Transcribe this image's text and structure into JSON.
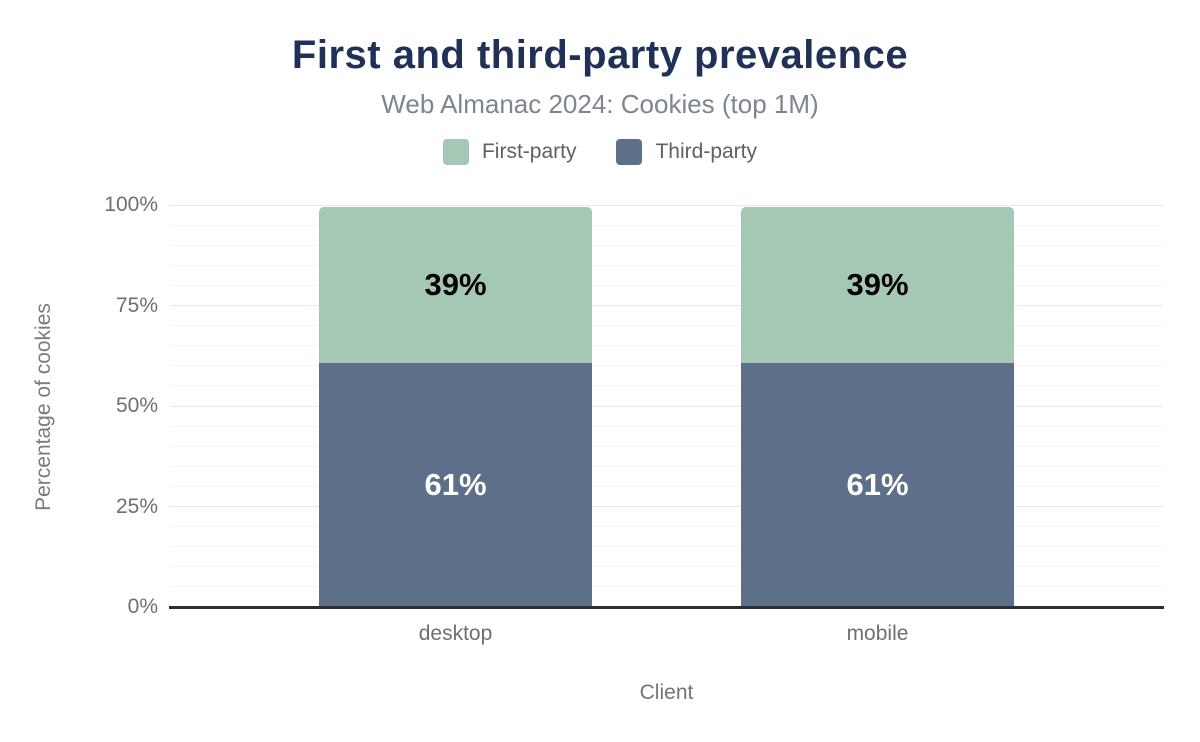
{
  "chart_data": {
    "type": "bar",
    "stacked": true,
    "title": "First and third-party prevalence",
    "subtitle": "Web Almanac 2024: Cookies (top 1M)",
    "xlabel": "Client",
    "ylabel": "Percentage of cookies",
    "categories": [
      "desktop",
      "mobile"
    ],
    "series": [
      {
        "name": "Third-party",
        "values": [
          61,
          61
        ],
        "data_labels": [
          "61%",
          "61%"
        ],
        "color": "#5e7089",
        "label_color": "#ffffff"
      },
      {
        "name": "First-party",
        "values": [
          39,
          39
        ],
        "data_labels": [
          "39%",
          "39%"
        ],
        "color": "#a5c8b4",
        "label_color": "#000000"
      }
    ],
    "stack_order_bottom_to_top": [
      "Third-party",
      "First-party"
    ],
    "legend_order": [
      "First-party",
      "Third-party"
    ],
    "legend_position": "top",
    "y_ticks": [
      {
        "value": 0,
        "label": "0%"
      },
      {
        "value": 25,
        "label": "25%"
      },
      {
        "value": 50,
        "label": "50%"
      },
      {
        "value": 75,
        "label": "75%"
      },
      {
        "value": 100,
        "label": "100%"
      }
    ],
    "ylim": [
      0,
      100
    ],
    "grid": {
      "minor_step": 5,
      "major_step": 25,
      "on": true
    }
  },
  "colors": {
    "background": "#ffffff",
    "title_text": "#203155",
    "subtitle_text": "#7d858f",
    "legend_text": "#5b6269",
    "axis_text": "#6b7077",
    "axis_line": "#2c2e33",
    "grid_major": "#e9e9eb",
    "grid_minor": "#f5f5f6",
    "first_party": "#a5c8b4",
    "third_party": "#5e7089"
  }
}
